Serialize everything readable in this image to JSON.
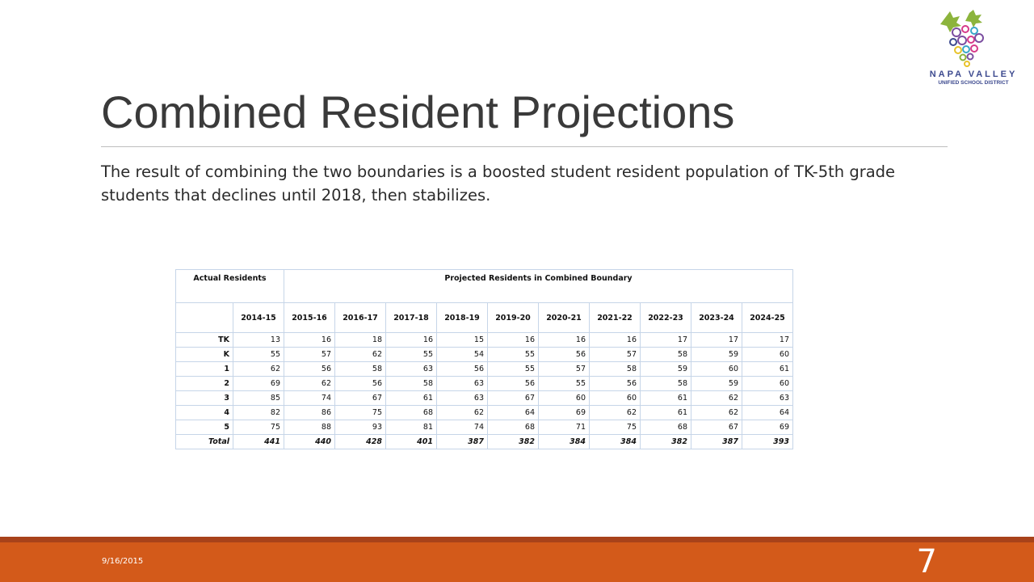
{
  "slide": {
    "title": "Combined Resident Projections",
    "body": "The result of combining the two boundaries is a boosted student resident population of TK-5th grade students that declines until 2018, then stabilizes.",
    "date": "9/16/2015",
    "page_number": "7"
  },
  "logo": {
    "line1": "NAPA VALLEY",
    "line2": "UNIFIED SCHOOL DISTRICT",
    "colors": {
      "leaf": "#8cb43c",
      "purple": "#7b4ea0",
      "pink": "#d63a8a",
      "blue": "#3d4a8f",
      "yellow": "#e8c32a",
      "teal": "#3aa6c8"
    }
  },
  "table": {
    "header_actual": "Actual Residents",
    "header_projected": "Projected Residents in Combined Boundary",
    "years": [
      "2014-15",
      "2015-16",
      "2016-17",
      "2017-18",
      "2018-19",
      "2019-20",
      "2020-21",
      "2021-22",
      "2022-23",
      "2023-24",
      "2024-25"
    ],
    "rows": [
      {
        "label": "TK",
        "values": [
          "13",
          "16",
          "18",
          "16",
          "15",
          "16",
          "16",
          "16",
          "17",
          "17",
          "17"
        ]
      },
      {
        "label": "K",
        "values": [
          "55",
          "57",
          "62",
          "55",
          "54",
          "55",
          "56",
          "57",
          "58",
          "59",
          "60"
        ]
      },
      {
        "label": "1",
        "values": [
          "62",
          "56",
          "58",
          "63",
          "56",
          "55",
          "57",
          "58",
          "59",
          "60",
          "61"
        ]
      },
      {
        "label": "2",
        "values": [
          "69",
          "62",
          "56",
          "58",
          "63",
          "56",
          "55",
          "56",
          "58",
          "59",
          "60"
        ]
      },
      {
        "label": "3",
        "values": [
          "85",
          "74",
          "67",
          "61",
          "63",
          "67",
          "60",
          "60",
          "61",
          "62",
          "63"
        ]
      },
      {
        "label": "4",
        "values": [
          "82",
          "86",
          "75",
          "68",
          "62",
          "64",
          "69",
          "62",
          "61",
          "62",
          "64"
        ]
      },
      {
        "label": "5",
        "values": [
          "75",
          "88",
          "93",
          "81",
          "74",
          "68",
          "71",
          "75",
          "68",
          "67",
          "69"
        ]
      }
    ],
    "total": {
      "label": "Total",
      "values": [
        "441",
        "440",
        "428",
        "401",
        "387",
        "382",
        "384",
        "384",
        "382",
        "387",
        "393"
      ]
    }
  },
  "theme": {
    "footer_color": "#d35a1a",
    "footer_dark": "#a8421a",
    "grid_color": "#c6d5e8"
  }
}
